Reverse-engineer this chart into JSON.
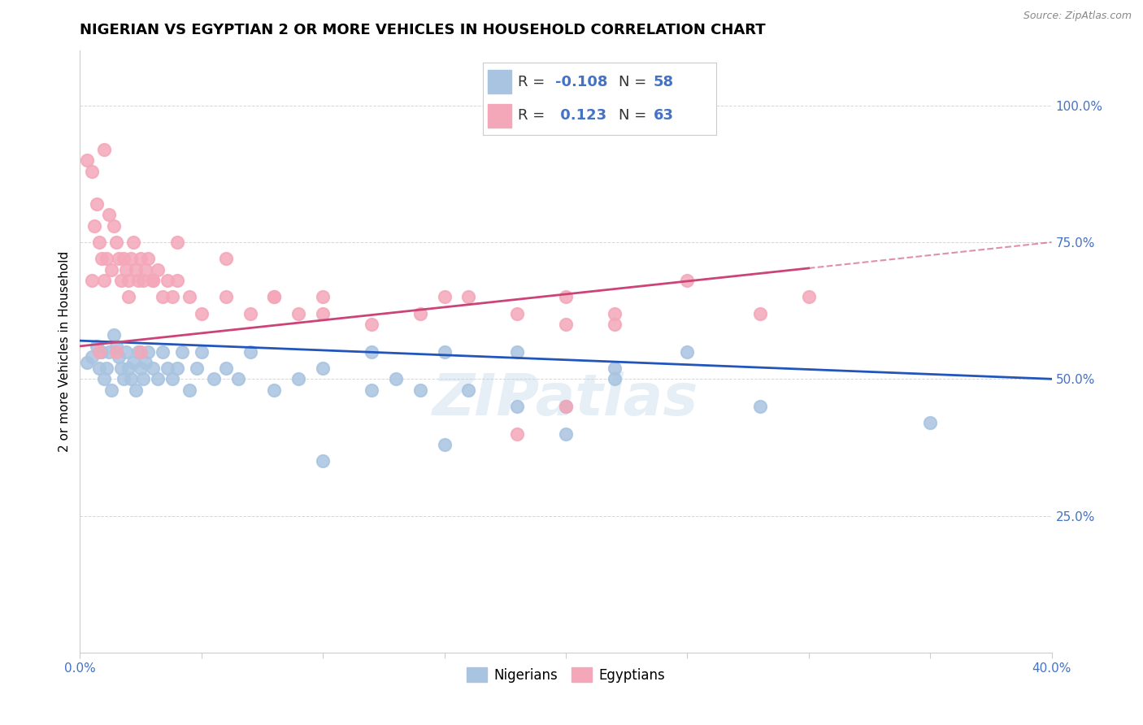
{
  "title": "NIGERIAN VS EGYPTIAN 2 OR MORE VEHICLES IN HOUSEHOLD CORRELATION CHART",
  "source": "Source: ZipAtlas.com",
  "ylabel": "2 or more Vehicles in Household",
  "xlim": [
    0.0,
    0.4
  ],
  "ylim": [
    0.0,
    1.1
  ],
  "xticks": [
    0.0,
    0.05,
    0.1,
    0.15,
    0.2,
    0.25,
    0.3,
    0.35,
    0.4
  ],
  "xticklabels": [
    "0.0%",
    "",
    "",
    "",
    "",
    "",
    "",
    "",
    "40.0%"
  ],
  "ytick_positions": [
    0.25,
    0.5,
    0.75,
    1.0
  ],
  "yticklabels": [
    "25.0%",
    "50.0%",
    "75.0%",
    "100.0%"
  ],
  "nigerian_R": -0.108,
  "nigerian_N": 58,
  "egyptian_R": 0.123,
  "egyptian_N": 63,
  "nigerian_color": "#a8c4e0",
  "egyptian_color": "#f4a7b9",
  "nigerian_line_color": "#2255bb",
  "egyptian_line_color": "#cc4477",
  "legend_R_color": "#4472c4",
  "watermark": "ZIPatlas",
  "nigerian_x": [
    0.003,
    0.005,
    0.007,
    0.008,
    0.009,
    0.01,
    0.011,
    0.012,
    0.013,
    0.014,
    0.015,
    0.016,
    0.017,
    0.018,
    0.019,
    0.02,
    0.021,
    0.022,
    0.023,
    0.024,
    0.025,
    0.026,
    0.027,
    0.028,
    0.03,
    0.032,
    0.034,
    0.036,
    0.038,
    0.04,
    0.042,
    0.045,
    0.048,
    0.05,
    0.055,
    0.06,
    0.065,
    0.07,
    0.08,
    0.09,
    0.1,
    0.12,
    0.13,
    0.14,
    0.15,
    0.16,
    0.18,
    0.2,
    0.22,
    0.25,
    0.28,
    0.15,
    0.12,
    0.1,
    0.2,
    0.35,
    0.18,
    0.22
  ],
  "nigerian_y": [
    0.53,
    0.54,
    0.56,
    0.52,
    0.55,
    0.5,
    0.52,
    0.55,
    0.48,
    0.58,
    0.56,
    0.54,
    0.52,
    0.5,
    0.55,
    0.52,
    0.5,
    0.53,
    0.48,
    0.55,
    0.52,
    0.5,
    0.53,
    0.55,
    0.52,
    0.5,
    0.55,
    0.52,
    0.5,
    0.52,
    0.55,
    0.48,
    0.52,
    0.55,
    0.5,
    0.52,
    0.5,
    0.55,
    0.48,
    0.5,
    0.52,
    0.55,
    0.5,
    0.48,
    0.55,
    0.48,
    0.55,
    0.45,
    0.52,
    0.55,
    0.45,
    0.38,
    0.48,
    0.35,
    0.4,
    0.42,
    0.45,
    0.5
  ],
  "egyptian_x": [
    0.003,
    0.005,
    0.006,
    0.007,
    0.008,
    0.009,
    0.01,
    0.011,
    0.012,
    0.013,
    0.014,
    0.015,
    0.016,
    0.017,
    0.018,
    0.019,
    0.02,
    0.021,
    0.022,
    0.023,
    0.024,
    0.025,
    0.026,
    0.027,
    0.028,
    0.03,
    0.032,
    0.034,
    0.036,
    0.038,
    0.04,
    0.045,
    0.05,
    0.06,
    0.07,
    0.08,
    0.09,
    0.1,
    0.12,
    0.14,
    0.16,
    0.18,
    0.2,
    0.22,
    0.25,
    0.28,
    0.3,
    0.06,
    0.08,
    0.1,
    0.15,
    0.2,
    0.04,
    0.03,
    0.025,
    0.02,
    0.015,
    0.01,
    0.008,
    0.005,
    0.18,
    0.22,
    0.2
  ],
  "egyptian_y": [
    0.9,
    0.88,
    0.78,
    0.82,
    0.75,
    0.72,
    0.68,
    0.72,
    0.8,
    0.7,
    0.78,
    0.75,
    0.72,
    0.68,
    0.72,
    0.7,
    0.68,
    0.72,
    0.75,
    0.7,
    0.68,
    0.72,
    0.68,
    0.7,
    0.72,
    0.68,
    0.7,
    0.65,
    0.68,
    0.65,
    0.68,
    0.65,
    0.62,
    0.65,
    0.62,
    0.65,
    0.62,
    0.65,
    0.6,
    0.62,
    0.65,
    0.62,
    0.65,
    0.6,
    0.68,
    0.62,
    0.65,
    0.72,
    0.65,
    0.62,
    0.65,
    0.6,
    0.75,
    0.68,
    0.55,
    0.65,
    0.55,
    0.92,
    0.55,
    0.68,
    0.4,
    0.62,
    0.45
  ],
  "title_fontsize": 13,
  "axis_label_fontsize": 11,
  "tick_fontsize": 11,
  "legend_fontsize": 13
}
